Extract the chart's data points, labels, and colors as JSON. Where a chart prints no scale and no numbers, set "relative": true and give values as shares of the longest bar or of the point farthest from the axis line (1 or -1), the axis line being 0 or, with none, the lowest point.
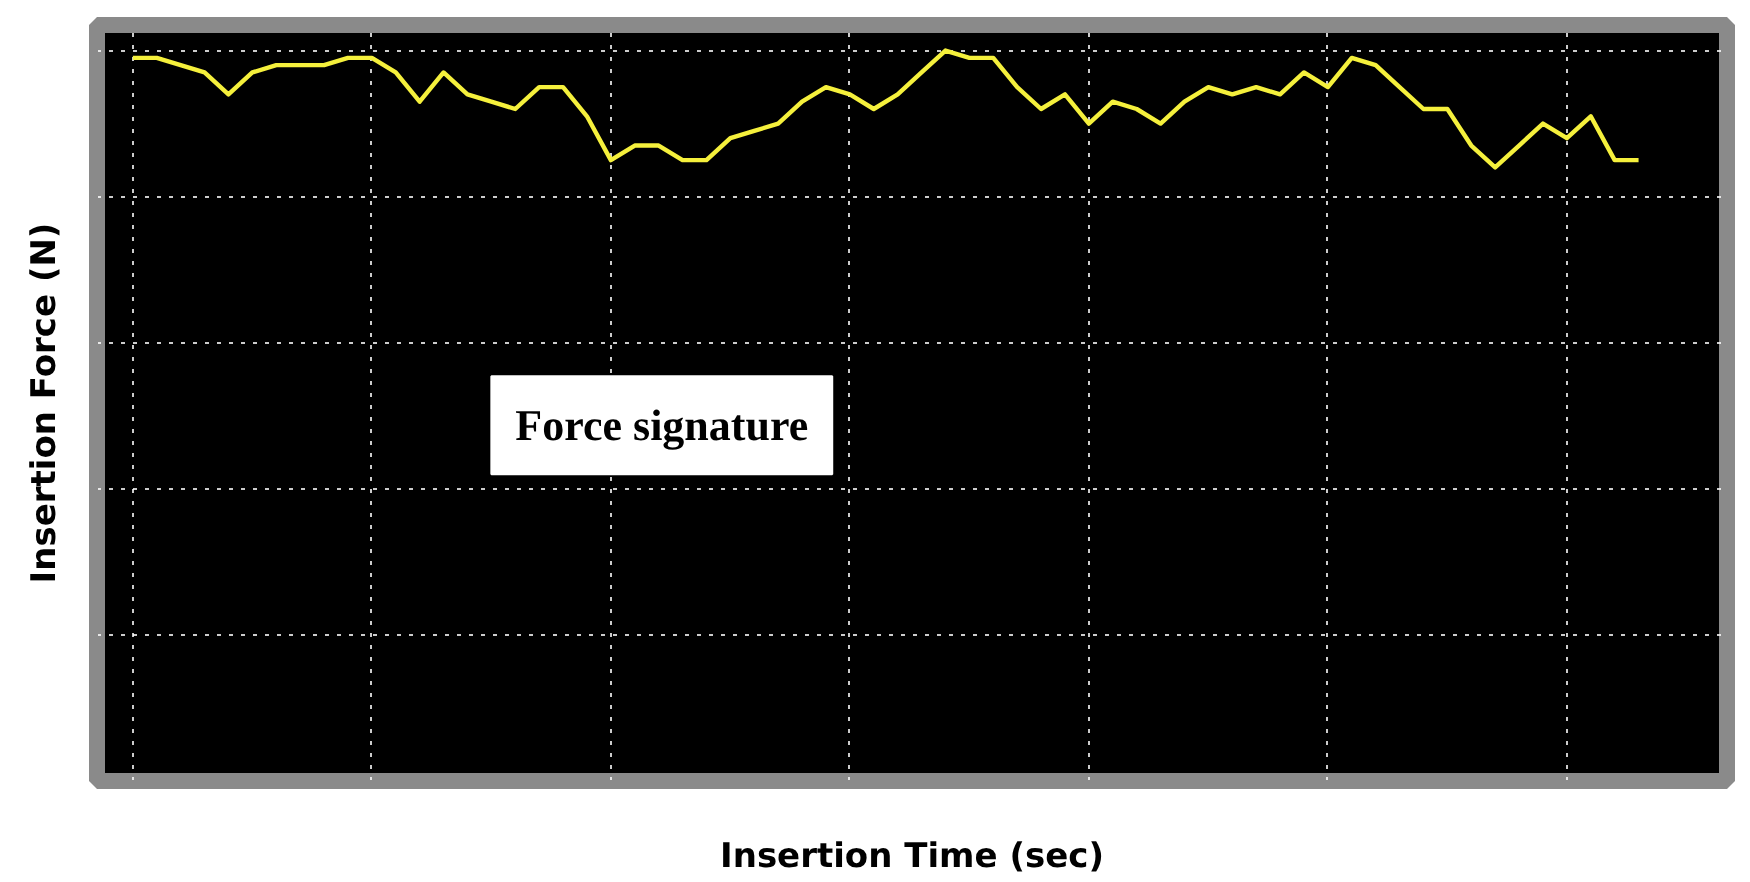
{
  "chart_data": {
    "type": "line",
    "relative": true,
    "xlabel": "Insertion Time (sec)",
    "ylabel": "Insertion Force (N)",
    "annotations": [
      "Force signature"
    ],
    "grid": true,
    "categories": [
      null,
      null,
      null,
      null,
      null,
      null,
      null,
      null,
      null,
      null,
      null,
      null,
      null,
      null,
      null,
      null,
      null,
      null,
      null,
      null,
      null,
      null,
      null,
      null,
      null,
      null,
      null,
      null,
      null,
      null,
      null,
      null,
      null,
      null,
      null,
      null,
      null,
      null,
      null,
      null,
      null,
      null,
      null,
      null,
      null,
      null,
      null,
      null,
      null,
      null,
      null,
      null,
      null,
      null,
      null,
      null,
      null,
      null,
      null,
      null,
      null,
      null,
      null,
      null,
      null,
      null,
      null
    ],
    "series": [
      {
        "color": "#f5f03c",
        "values": [
          0.99,
          0.99,
          0.98,
          0.97,
          0.94,
          0.97,
          0.98,
          0.98,
          0.98,
          0.99,
          0.99,
          0.97,
          0.93,
          0.97,
          0.94,
          0.93,
          0.92,
          0.95,
          0.95,
          0.91,
          0.85,
          0.87,
          0.87,
          0.85,
          0.85,
          0.88,
          0.89,
          0.9,
          0.93,
          0.95,
          0.94,
          0.92,
          0.94,
          0.97,
          1,
          0.99,
          0.99,
          0.95,
          0.92,
          0.94,
          0.9,
          0.93,
          0.92,
          0.9,
          0.93,
          0.95,
          0.94,
          0.95,
          0.94,
          0.97,
          0.95,
          0.99,
          0.98,
          0.95,
          0.92,
          0.92,
          0.87,
          0.84,
          0.87,
          0.9,
          0.88,
          0.91,
          0.85,
          0.85,
          null,
          null,
          null
        ]
      }
    ]
  }
}
